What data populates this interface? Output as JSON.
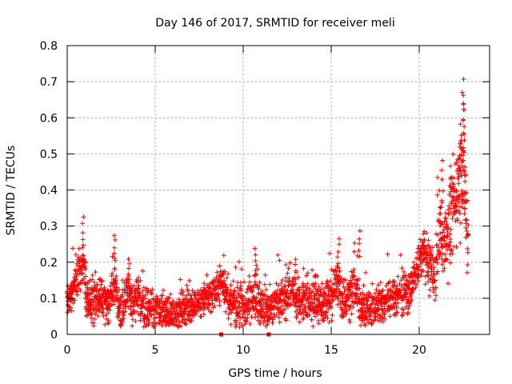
{
  "chart_data": {
    "type": "scatter",
    "title": "Day 146 of 2017, SRMTID for receiver meli",
    "xlabel": "GPS time / hours",
    "ylabel": "SRMTID / TECUs",
    "xlim": [
      0,
      24
    ],
    "ylim": [
      0,
      0.8
    ],
    "x_ticks": [
      0,
      5,
      10,
      15,
      20
    ],
    "x_tick_labels": [
      "0",
      "5",
      "10",
      "15",
      "20"
    ],
    "y_ticks": [
      0,
      0.1,
      0.2,
      0.3,
      0.4,
      0.5,
      0.6,
      0.7,
      0.8
    ],
    "y_tick_labels": [
      "0",
      "0.1",
      "0.2",
      "0.3",
      "0.4",
      "0.5",
      "0.6",
      "0.7",
      "0.8"
    ],
    "grid": true,
    "marker": "+",
    "color": "#ff0000",
    "series": [
      {
        "name": "SRMTID",
        "profile": {
          "x": [
            0,
            0.25,
            0.5,
            0.75,
            0.9,
            1.1,
            1.5,
            2.0,
            2.4,
            2.7,
            3.0,
            3.4,
            3.7,
            4.0,
            4.5,
            5.0,
            5.5,
            6.0,
            6.5,
            7.0,
            7.5,
            8.0,
            8.5,
            8.8,
            9.2,
            9.5,
            9.8,
            10.2,
            10.5,
            11.0,
            11.3,
            11.7,
            12.2,
            12.8,
            13.0,
            13.5,
            14.0,
            14.5,
            15.0,
            15.3,
            15.6,
            16.0,
            16.4,
            16.6,
            17.0,
            17.5,
            18.0,
            18.5,
            19.0,
            19.5,
            20.0,
            20.2,
            20.5,
            20.9,
            21.1,
            21.4,
            21.7,
            22.0,
            22.3,
            22.5,
            22.7
          ],
          "y": [
            0.1,
            0.12,
            0.14,
            0.18,
            0.2,
            0.1,
            0.1,
            0.1,
            0.07,
            0.15,
            0.06,
            0.12,
            0.08,
            0.1,
            0.08,
            0.07,
            0.06,
            0.06,
            0.07,
            0.08,
            0.09,
            0.1,
            0.13,
            0.15,
            0.09,
            0.08,
            0.08,
            0.07,
            0.12,
            0.09,
            0.06,
            0.08,
            0.09,
            0.12,
            0.09,
            0.1,
            0.09,
            0.08,
            0.1,
            0.15,
            0.09,
            0.11,
            0.14,
            0.08,
            0.07,
            0.08,
            0.09,
            0.1,
            0.11,
            0.12,
            0.2,
            0.23,
            0.2,
            0.16,
            0.28,
            0.25,
            0.3,
            0.35,
            0.42,
            0.45,
            0.3
          ]
        },
        "spread": {
          "x": [
            0,
            1,
            3,
            8,
            10.5,
            12,
            15,
            17,
            20,
            21,
            22,
            22.8
          ],
          "y": [
            0.04,
            0.05,
            0.05,
            0.03,
            0.05,
            0.04,
            0.05,
            0.04,
            0.04,
            0.07,
            0.1,
            0.12
          ]
        },
        "peaks": [
          {
            "x": 0.9,
            "y": 0.33
          },
          {
            "x": 2.7,
            "y": 0.28
          },
          {
            "x": 3.5,
            "y": 0.21
          },
          {
            "x": 8.7,
            "y": 0.19
          },
          {
            "x": 10.7,
            "y": 0.24
          },
          {
            "x": 13.0,
            "y": 0.21
          },
          {
            "x": 15.4,
            "y": 0.27
          },
          {
            "x": 16.6,
            "y": 0.29
          },
          {
            "x": 20.2,
            "y": 0.28
          },
          {
            "x": 21.3,
            "y": 0.49
          },
          {
            "x": 21.8,
            "y": 0.47
          },
          {
            "x": 22.0,
            "y": 0.44
          },
          {
            "x": 22.3,
            "y": 0.52
          },
          {
            "x": 22.4,
            "y": 0.59
          },
          {
            "x": 22.5,
            "y": 0.64
          },
          {
            "x": 22.55,
            "y": 0.71
          },
          {
            "x": 22.5,
            "y": 0.68
          },
          {
            "x": 22.6,
            "y": 0.4
          }
        ],
        "zero_points": [
          {
            "x": 8.75,
            "y": 0
          },
          {
            "x": 11.45,
            "y": 0
          }
        ]
      }
    ]
  }
}
